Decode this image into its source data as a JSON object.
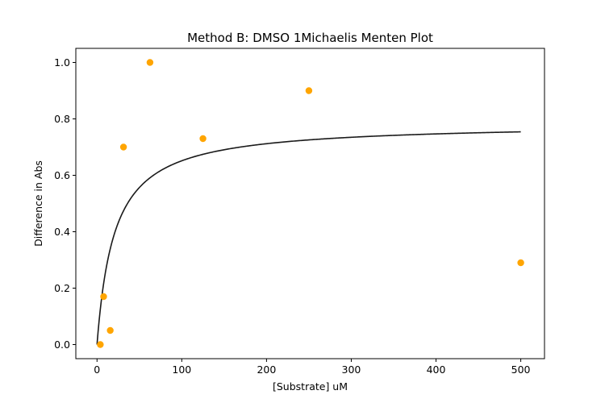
{
  "chart_data": {
    "type": "scatter",
    "title": "Method B: DMSO 1Michaelis Menten Plot",
    "xlabel": "[Substrate] uM",
    "ylabel": "Difference in Abs",
    "xlim": [
      -25,
      528
    ],
    "ylim": [
      -0.05,
      1.05
    ],
    "xticks": [
      0,
      100,
      200,
      300,
      400,
      500
    ],
    "yticks": [
      0.0,
      0.2,
      0.4,
      0.6,
      0.8,
      1.0
    ],
    "xtick_labels": [
      "0",
      "100",
      "200",
      "300",
      "400",
      "500"
    ],
    "ytick_labels": [
      "0.0",
      "0.2",
      "0.4",
      "0.6",
      "0.8",
      "1.0"
    ],
    "grid": false,
    "colors": {
      "points": "#FFA500",
      "fit": "#1a1a1a"
    },
    "series": [
      {
        "kind": "points",
        "x": [
          3.9,
          7.8,
          15.6,
          31.25,
          62.5,
          125,
          250,
          500
        ],
        "y": [
          0.0,
          0.17,
          0.05,
          0.7,
          1.0,
          0.73,
          0.9,
          0.29
        ]
      },
      {
        "kind": "fit-curve",
        "model": "michaelis-menten",
        "Vmax": 0.785,
        "Km": 20.5,
        "x_range": [
          0,
          500
        ]
      }
    ]
  }
}
